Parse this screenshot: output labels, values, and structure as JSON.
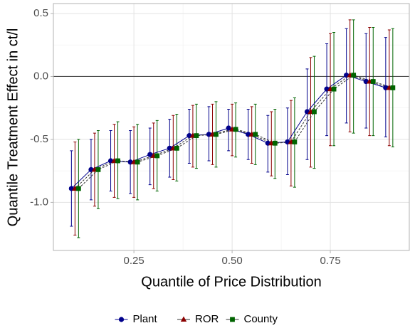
{
  "chart_data": {
    "type": "errorbar-line",
    "x_label": "Quantile of Price Distribution",
    "y_label": "Quantile Treatment Effect in ct/l",
    "x": [
      0.1,
      0.15,
      0.2,
      0.25,
      0.3,
      0.35,
      0.4,
      0.45,
      0.5,
      0.55,
      0.6,
      0.65,
      0.7,
      0.75,
      0.8,
      0.85,
      0.9
    ],
    "series": [
      {
        "name": "Plant",
        "color": "#00008b",
        "shape": "circle",
        "dashed": false,
        "values": [
          -0.89,
          -0.74,
          -0.67,
          -0.68,
          -0.62,
          -0.57,
          -0.47,
          -0.46,
          -0.41,
          -0.46,
          -0.53,
          -0.52,
          -0.28,
          -0.1,
          0.01,
          -0.04,
          -0.09
        ],
        "lower": [
          -1.19,
          -0.98,
          -0.91,
          -0.93,
          -0.86,
          -0.8,
          -0.69,
          -0.67,
          -0.59,
          -0.66,
          -0.76,
          -0.78,
          -0.66,
          -0.47,
          -0.37,
          -0.41,
          -0.48
        ],
        "upper": [
          -0.59,
          -0.5,
          -0.43,
          -0.43,
          -0.41,
          -0.34,
          -0.26,
          -0.24,
          -0.26,
          -0.26,
          -0.31,
          -0.25,
          0.06,
          0.26,
          0.38,
          0.34,
          0.31
        ]
      },
      {
        "name": "ROR",
        "color": "#8b0000",
        "shape": "triangle",
        "dashed": true,
        "values": [
          -0.89,
          -0.74,
          -0.67,
          -0.68,
          -0.63,
          -0.57,
          -0.47,
          -0.46,
          -0.42,
          -0.46,
          -0.53,
          -0.52,
          -0.28,
          -0.1,
          0.01,
          -0.04,
          -0.09
        ],
        "lower": [
          -1.26,
          -1.03,
          -0.96,
          -0.96,
          -0.89,
          -0.82,
          -0.72,
          -0.7,
          -0.63,
          -0.69,
          -0.79,
          -0.87,
          -0.72,
          -0.55,
          -0.44,
          -0.47,
          -0.55
        ],
        "upper": [
          -0.52,
          -0.45,
          -0.38,
          -0.4,
          -0.37,
          -0.31,
          -0.23,
          -0.22,
          -0.22,
          -0.24,
          -0.28,
          -0.19,
          0.15,
          0.34,
          0.45,
          0.39,
          0.37
        ]
      },
      {
        "name": "County",
        "color": "#006400",
        "shape": "square",
        "dashed": true,
        "values": [
          -0.89,
          -0.74,
          -0.67,
          -0.68,
          -0.63,
          -0.57,
          -0.47,
          -0.46,
          -0.42,
          -0.46,
          -0.53,
          -0.52,
          -0.28,
          -0.1,
          0.01,
          -0.04,
          -0.09
        ],
        "lower": [
          -1.28,
          -1.05,
          -0.97,
          -0.98,
          -0.91,
          -0.83,
          -0.73,
          -0.72,
          -0.64,
          -0.7,
          -0.81,
          -0.88,
          -0.73,
          -0.55,
          -0.45,
          -0.47,
          -0.56
        ],
        "upper": [
          -0.5,
          -0.43,
          -0.36,
          -0.38,
          -0.35,
          -0.3,
          -0.22,
          -0.2,
          -0.21,
          -0.22,
          -0.26,
          -0.17,
          0.16,
          0.35,
          0.45,
          0.39,
          0.38
        ]
      }
    ],
    "xlim": [
      0.045,
      0.951
    ],
    "ylim": [
      -1.382,
      0.579
    ],
    "xticks": [
      {
        "value": 0.25,
        "label": "0.25"
      },
      {
        "value": 0.5,
        "label": "0.50"
      },
      {
        "value": 0.75,
        "label": "0.75"
      }
    ],
    "yticks": [
      {
        "value": -1,
        "label": "-1.0"
      },
      -0.5,
      {
        "value": 0,
        "label": "0.0"
      },
      0.5
    ],
    "hline": 0,
    "grid": true,
    "legend": "bottom"
  }
}
